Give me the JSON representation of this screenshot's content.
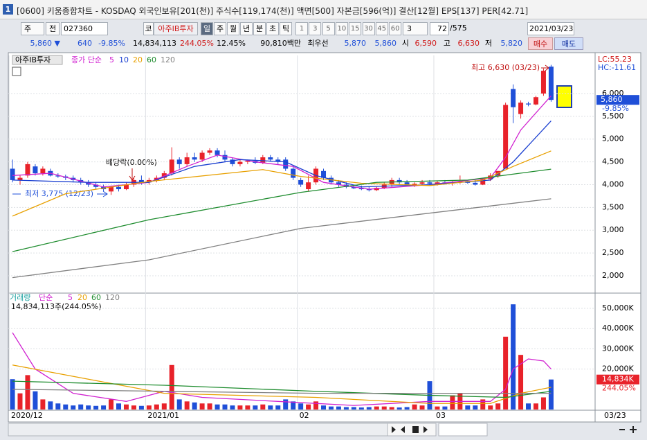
{
  "window": {
    "number": 1,
    "title": "[0600] 키움종합차트 - KOSDAQ 외국인보유[201(천)] 주식수[119,174(천)] 액면[500] 자본금[596(억)] 결산[12월] EPS[137] PER[42.71]"
  },
  "toolbar": {
    "unit": "주",
    "compare": "전",
    "code": "027360",
    "market": "코",
    "stock_name": "아주IB투자",
    "periods": [
      "일",
      "주",
      "월",
      "년",
      "분",
      "초",
      "틱"
    ],
    "intervals": [
      1,
      3,
      5,
      10,
      15,
      30,
      45,
      60
    ],
    "interval_count": 3,
    "display_count": 72,
    "total_count": "/575",
    "date": "2021/03/23"
  },
  "info": {
    "price": "5,860 ▼",
    "change": 640,
    "change_rate": "-9.85%",
    "volume": "14,834,113",
    "volume_ratio": "244.05%",
    "turnover": "12.45%",
    "trade_value": "90,810백만",
    "best_label": "최우선",
    "best_ask": "5,870",
    "best_bid": "5,860",
    "open_label": "시",
    "open": "6,590",
    "high_label": "고",
    "high": "6,630",
    "low_label": "저",
    "low": "5,820",
    "buy": "매수",
    "sell": "매도"
  },
  "chart_data": [
    {
      "type": "candlestick",
      "stock_label": "아주IB투자",
      "legend_label": "종가 단순",
      "up_color": "#e8222a",
      "down_color": "#1f4fd8",
      "grid": true,
      "xlim": [
        -0.55,
        76.8
      ],
      "ylim": [
        1650,
        6836
      ],
      "yticks": [
        {
          "value": 6000,
          "label": "6,000"
        },
        {
          "value": 5500,
          "label": "5,500"
        },
        {
          "value": 5000,
          "label": "5,000"
        },
        {
          "value": 4500,
          "label": "4,500"
        },
        {
          "value": 4000,
          "label": "4,000"
        },
        {
          "value": 3500,
          "label": "3,500"
        },
        {
          "value": 3000,
          "label": "3,000"
        },
        {
          "value": 2500,
          "label": "2,500"
        },
        {
          "value": 2000,
          "label": "2,000"
        }
      ],
      "lc_label": "LC:55.23",
      "hc_label": "HC:-11.61",
      "last_price_label": "5,860",
      "last_change_label": "-9.85%",
      "annotations": [
        "최고 6,630 (03/23)",
        "최저 3,775 (12/23)",
        "배당락(0.00%)"
      ],
      "x": [
        0,
        1,
        2,
        3,
        4,
        5,
        6,
        7,
        8,
        9,
        10,
        11,
        12,
        13,
        14,
        15,
        16,
        17,
        18,
        19,
        20,
        21,
        22,
        23,
        24,
        25,
        26,
        27,
        28,
        29,
        30,
        31,
        32,
        33,
        34,
        35,
        36,
        37,
        38,
        39,
        40,
        41,
        42,
        43,
        44,
        45,
        46,
        47,
        48,
        49,
        50,
        51,
        52,
        53,
        54,
        55,
        56,
        57,
        58,
        59,
        60,
        61,
        62,
        63,
        64,
        65,
        66,
        67,
        68,
        69,
        70,
        71
      ],
      "open": [
        4350,
        4100,
        4200,
        4400,
        4250,
        4300,
        4200,
        4180,
        4150,
        4100,
        4050,
        4000,
        3950,
        3850,
        3950,
        3900,
        4000,
        4100,
        4050,
        4100,
        4150,
        4250,
        4550,
        4450,
        4600,
        4550,
        4700,
        4750,
        4650,
        4550,
        4450,
        4500,
        4520,
        4480,
        4600,
        4550,
        4550,
        4350,
        4100,
        3900,
        4050,
        4300,
        4150,
        4050,
        4000,
        3950,
        3920,
        3900,
        3880,
        3930,
        4000,
        4100,
        4050,
        4000,
        4020,
        4050,
        4020,
        4050,
        4030,
        4060,
        4080,
        4040,
        4000,
        4120,
        4200,
        4350,
        6100,
        5550,
        5780,
        5760,
        6000,
        6590
      ],
      "high": [
        4550,
        4200,
        4500,
        4450,
        4400,
        4350,
        4250,
        4220,
        4200,
        4150,
        4100,
        4050,
        4000,
        3980,
        4000,
        4050,
        4150,
        4200,
        4150,
        4200,
        4300,
        4820,
        4600,
        4700,
        4700,
        4750,
        4800,
        4800,
        4750,
        4600,
        4550,
        4550,
        4600,
        4650,
        4650,
        4600,
        4600,
        4400,
        4150,
        4200,
        4400,
        4350,
        4200,
        4100,
        4050,
        4000,
        3980,
        3950,
        3950,
        4050,
        4150,
        4150,
        4100,
        4050,
        4100,
        4100,
        4080,
        4100,
        4080,
        4200,
        4100,
        4100,
        4150,
        4250,
        4300,
        5800,
        6200,
        5850,
        5820,
        5950,
        6550,
        6630
      ],
      "low": [
        4050,
        4000,
        4150,
        4200,
        4200,
        4180,
        4150,
        4100,
        4050,
        4000,
        3950,
        3900,
        3850,
        3775,
        3850,
        3880,
        3950,
        4000,
        4000,
        4050,
        4100,
        4200,
        4350,
        4400,
        4500,
        4500,
        4650,
        4600,
        4500,
        4400,
        4400,
        4450,
        4450,
        4450,
        4500,
        4450,
        4300,
        4100,
        3950,
        3850,
        4000,
        4100,
        4000,
        3950,
        3920,
        3900,
        3880,
        3850,
        3860,
        3900,
        3950,
        4000,
        3980,
        3950,
        3980,
        4000,
        3980,
        4000,
        3980,
        4020,
        4020,
        3980,
        3990,
        4080,
        4150,
        4350,
        5350,
        5450,
        5720,
        5740,
        5950,
        5820
      ],
      "close": [
        4100,
        4150,
        4450,
        4250,
        4350,
        4200,
        4180,
        4150,
        4100,
        4050,
        4000,
        3950,
        3900,
        3950,
        3900,
        4000,
        4100,
        4050,
        4100,
        4150,
        4250,
        4550,
        4450,
        4600,
        4550,
        4700,
        4750,
        4650,
        4550,
        4450,
        4500,
        4520,
        4480,
        4600,
        4550,
        4500,
        4350,
        4150,
        4000,
        4050,
        4350,
        4150,
        4050,
        4000,
        3950,
        3920,
        3900,
        3880,
        3930,
        4000,
        4100,
        4050,
        4000,
        4020,
        4050,
        4020,
        4050,
        4030,
        4060,
        4080,
        4040,
        4000,
        4120,
        4200,
        4300,
        5750,
        5700,
        5800,
        5760,
        5920,
        6500,
        5860
      ],
      "series": [
        {
          "name": 5,
          "color": "#d020d0",
          "x": [
            0,
            5,
            12,
            18,
            23,
            27,
            32,
            37,
            41,
            47,
            55,
            63,
            65,
            67,
            71
          ],
          "values": [
            4200,
            4250,
            3950,
            4050,
            4400,
            4650,
            4500,
            4400,
            4050,
            3900,
            4000,
            4150,
            4600,
            5200,
            5950
          ]
        },
        {
          "name": 10,
          "color": "#1a3fd0",
          "x": [
            0,
            10,
            18,
            24,
            30,
            36,
            40,
            46,
            55,
            63,
            66,
            71
          ],
          "values": [
            4100,
            4050,
            4050,
            4400,
            4550,
            4500,
            4200,
            3950,
            4000,
            4100,
            4500,
            5400
          ]
        },
        {
          "name": 20,
          "color": "#e8a000",
          "x": [
            0,
            7,
            18,
            33,
            38,
            46,
            55,
            62,
            66,
            71
          ],
          "values": [
            3310,
            3800,
            4070,
            4330,
            4180,
            4030,
            3980,
            4100,
            4400,
            4740
          ]
        },
        {
          "name": 60,
          "color": "#1e8c2e",
          "x": [
            0,
            18,
            38,
            48,
            60,
            71
          ],
          "values": [
            2530,
            3230,
            3830,
            4050,
            4100,
            4340
          ]
        },
        {
          "name": 120,
          "color": "#808080",
          "x": [
            0,
            18,
            38,
            71
          ],
          "values": [
            1960,
            2350,
            3040,
            3690
          ]
        }
      ]
    },
    {
      "type": "bar",
      "title": "거래량",
      "legend_label": "단순",
      "summary": "14,834,113주(244.05%)",
      "grid": true,
      "ylim": [
        0,
        57200
      ],
      "yticks": [
        {
          "value": 50000,
          "label": "50,000K"
        },
        {
          "value": 40000,
          "label": "40,000K"
        },
        {
          "value": 30000,
          "label": "30,000K"
        },
        {
          "value": 20000,
          "label": "20,000K"
        }
      ],
      "xticks": [
        {
          "value": 0,
          "label": "2020/12"
        },
        {
          "value": 18,
          "label": "2021/01"
        },
        {
          "value": 38,
          "label": "02"
        },
        {
          "value": 56,
          "label": "03"
        }
      ],
      "end_label": "03/23",
      "last_ratio_label": "244.05%",
      "values": [
        15000,
        8000,
        17000,
        9000,
        5000,
        4000,
        3000,
        2500,
        2000,
        2500,
        2000,
        1800,
        2000,
        5000,
        3000,
        2500,
        2000,
        1800,
        2000,
        2500,
        3000,
        22000,
        5000,
        4000,
        3500,
        3000,
        3000,
        2500,
        2500,
        2000,
        2000,
        2000,
        2000,
        2500,
        2000,
        2000,
        5000,
        4000,
        3000,
        2500,
        4000,
        2000,
        1500,
        1500,
        1200,
        1200,
        1000,
        1200,
        1500,
        1500,
        1200,
        1000,
        1200,
        2500,
        2000,
        14000,
        1500,
        1500,
        7000,
        8000,
        2000,
        2000,
        5000,
        2000,
        3000,
        36000,
        52000,
        27000,
        3000,
        3000,
        6000,
        14834
      ],
      "value_labels": [
        null,
        null,
        null,
        null,
        null,
        null,
        null,
        null,
        null,
        null,
        null,
        null,
        null,
        null,
        null,
        null,
        null,
        null,
        null,
        null,
        null,
        null,
        null,
        null,
        null,
        null,
        null,
        null,
        null,
        null,
        null,
        null,
        null,
        null,
        null,
        null,
        null,
        null,
        null,
        null,
        null,
        null,
        null,
        null,
        null,
        null,
        null,
        null,
        null,
        null,
        null,
        null,
        null,
        null,
        null,
        null,
        null,
        null,
        null,
        null,
        null,
        null,
        null,
        null,
        null,
        null,
        null,
        null,
        null,
        null,
        null,
        "14,834K"
      ],
      "series": [
        {
          "name": 5,
          "color": "#d020d0",
          "x": [
            0,
            3,
            8,
            15,
            20,
            25,
            35,
            45,
            55,
            63,
            65,
            66,
            68,
            70,
            71
          ],
          "values": [
            38000,
            20000,
            8000,
            4000,
            9000,
            6000,
            4000,
            2000,
            4000,
            4000,
            10000,
            20000,
            25000,
            24000,
            20000
          ]
        },
        {
          "name": 20,
          "color": "#e8a000",
          "x": [
            0,
            10,
            20,
            40,
            55,
            63,
            67,
            71
          ],
          "values": [
            22000,
            15000,
            8000,
            6000,
            3000,
            3000,
            8000,
            11000
          ]
        },
        {
          "name": 60,
          "color": "#1e8c2e",
          "x": [
            0,
            20,
            40,
            55,
            65,
            71
          ],
          "values": [
            14000,
            12000,
            9000,
            7000,
            6000,
            9000
          ]
        },
        {
          "name": 120,
          "color": "#808080",
          "x": [
            0,
            40,
            71
          ],
          "values": [
            10000,
            8000,
            8000
          ]
        }
      ]
    }
  ]
}
